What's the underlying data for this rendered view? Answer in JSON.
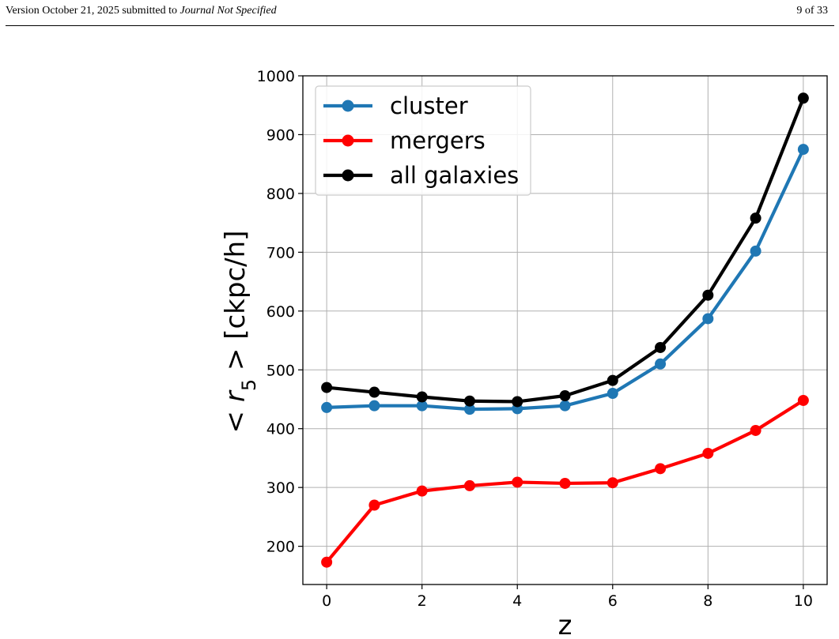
{
  "header": {
    "version_text": "Version October 21, 2025 submitted to",
    "journal": "Journal Not Specified",
    "page": "9 of 33"
  },
  "chart_data": {
    "type": "line",
    "title": "",
    "xlabel": "z",
    "ylabel_prefix": "< r",
    "ylabel_sub": "5",
    "ylabel_suffix": " >  [ckpc/h]",
    "x": [
      0,
      1,
      2,
      3,
      4,
      5,
      6,
      7,
      8,
      9,
      10
    ],
    "xlim": [
      -0.5,
      10.5
    ],
    "ylim": [
      135,
      1000
    ],
    "xticks": [
      0,
      2,
      4,
      6,
      8,
      10
    ],
    "yticks": [
      200,
      300,
      400,
      500,
      600,
      700,
      800,
      900,
      1000
    ],
    "grid": true,
    "legend_position": "top-left",
    "series": [
      {
        "name": "cluster",
        "color": "#1f77b4",
        "values": [
          436,
          439,
          439,
          433,
          434,
          439,
          460,
          510,
          587,
          702,
          875
        ]
      },
      {
        "name": "mergers",
        "color": "#ff0000",
        "values": [
          173,
          270,
          294,
          303,
          309,
          307,
          308,
          332,
          358,
          397,
          448
        ]
      },
      {
        "name": "all galaxies",
        "color": "#000000",
        "values": [
          470,
          462,
          454,
          447,
          446,
          456,
          482,
          538,
          627,
          758,
          962
        ]
      }
    ]
  }
}
